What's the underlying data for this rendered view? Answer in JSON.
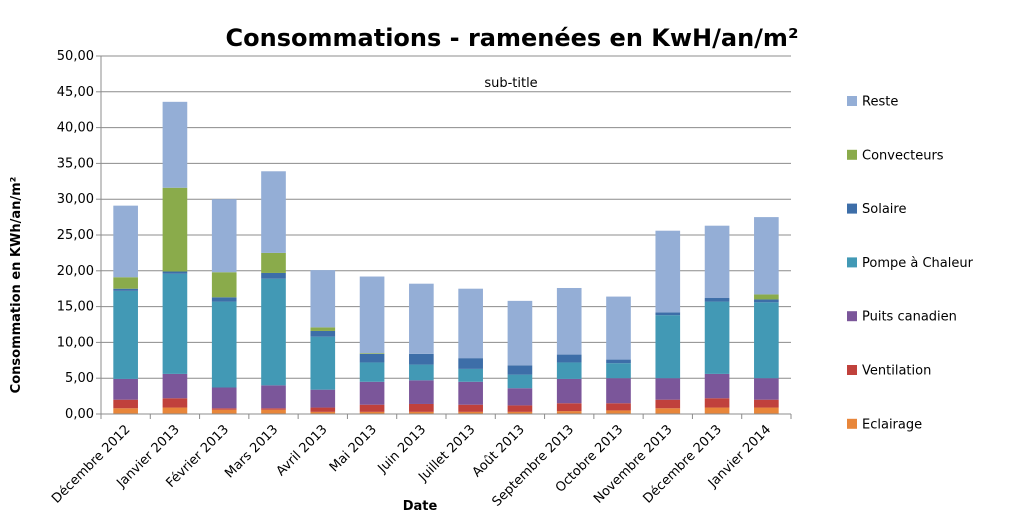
{
  "chart_data": {
    "type": "bar",
    "stacked": true,
    "title": "Consommations - ramenées en KwH/an/m²",
    "subtitle": "sub-title",
    "xlabel": "Date",
    "ylabel": "Consommation en KWh/an/m²",
    "ylim": [
      0,
      50
    ],
    "yticks": [
      "0,00",
      "5,00",
      "10,00",
      "15,00",
      "20,00",
      "25,00",
      "30,00",
      "35,00",
      "40,00",
      "45,00",
      "50,00"
    ],
    "grid": true,
    "legend_position": "right",
    "categories": [
      "Décembre 2012",
      "Janvier 2013",
      "Février 2013",
      "Mars 2013",
      "Avril 2013",
      "Mai 2013",
      "Juin 2013",
      "Juillet 2013",
      "Août 2013",
      "Septembre 2013",
      "Octobre 2013",
      "Novembre 2013",
      "Décembre 2013",
      "Janvier 2014"
    ],
    "series": [
      {
        "name": "Eclairage",
        "color": "#e8863a",
        "values": [
          0.8,
          0.9,
          0.6,
          0.6,
          0.3,
          0.3,
          0.3,
          0.3,
          0.3,
          0.4,
          0.5,
          0.8,
          0.9,
          0.9
        ]
      },
      {
        "name": "Ventilation",
        "color": "#c0413c",
        "values": [
          1.2,
          1.3,
          0.2,
          0.2,
          0.6,
          1.0,
          1.1,
          1.0,
          0.9,
          1.1,
          1.0,
          1.2,
          1.3,
          1.1
        ]
      },
      {
        "name": "Puits canadien",
        "color": "#7b569a",
        "values": [
          2.9,
          3.4,
          2.9,
          3.2,
          2.5,
          3.2,
          3.3,
          3.2,
          2.4,
          3.4,
          3.5,
          3.0,
          3.4,
          3.0
        ]
      },
      {
        "name": "Pompe à Chaleur",
        "color": "#4299b5",
        "values": [
          12.3,
          14.0,
          12.0,
          14.9,
          7.4,
          2.7,
          2.2,
          1.8,
          1.9,
          2.3,
          2.1,
          8.8,
          10.1,
          10.6
        ]
      },
      {
        "name": "Solaire",
        "color": "#3d6ea8",
        "values": [
          0.3,
          0.3,
          0.6,
          0.8,
          0.8,
          1.2,
          1.5,
          1.5,
          1.3,
          1.1,
          0.5,
          0.4,
          0.5,
          0.4
        ]
      },
      {
        "name": "Convecteurs",
        "color": "#8aab4b",
        "values": [
          1.6,
          11.7,
          3.5,
          2.8,
          0.5,
          0.1,
          0.0,
          0.0,
          0.0,
          0.0,
          0.0,
          0.0,
          0.0,
          0.7
        ]
      },
      {
        "name": "Reste",
        "color": "#94aed6",
        "values": [
          10.0,
          12.0,
          10.2,
          11.4,
          8.0,
          10.7,
          9.8,
          9.7,
          9.0,
          9.3,
          8.8,
          11.4,
          10.1,
          10.8
        ]
      }
    ]
  }
}
